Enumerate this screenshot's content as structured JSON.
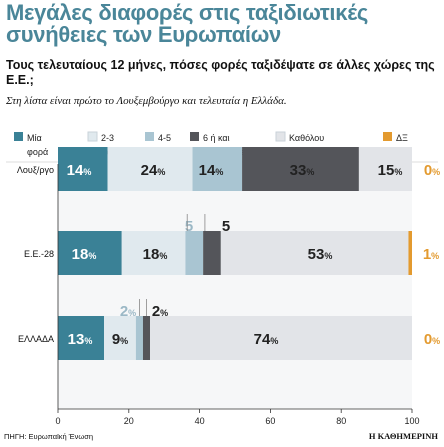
{
  "header": {
    "title": "Μεγάλες διαφορές στις ταξιδιωτικές συνήθειες των Ευρωπαίων",
    "subtitle": "Τους τελευταίους 12 μήνες, πόσες φορές ταξιδέψατε σε άλλες χώρες της Ε.Ε.;",
    "note": "Στη λίστα είναι πρώτο το Λουξεμβούργο και τελευταία η Ελλάδα."
  },
  "footer": {
    "source": "ΠΗΓΗ: Ευρωπαϊκή Ένωση",
    "brand": "Η ΚΑΘΗΜΕΡΙΝΗ"
  },
  "chart_data": {
    "type": "bar",
    "orientation": "horizontal",
    "stacked": true,
    "categories": [
      "Λουξ/ργο",
      "Ε.Ε.-28",
      "ΕΛΛΑΔΑ"
    ],
    "series": [
      {
        "name": "Μία φορά",
        "legend_lines": [
          "Μία",
          "φορά"
        ],
        "color": "#3a8196",
        "values": [
          14,
          18,
          13
        ]
      },
      {
        "name": "2-3 φορές",
        "legend_lines": [
          "2-3",
          "φορές"
        ],
        "color": "#e0e9ee",
        "values": [
          24,
          18,
          9
        ]
      },
      {
        "name": "4-5 φορές",
        "legend_lines": [
          "4-5",
          "φορές"
        ],
        "color": "#a9c5d2",
        "values": [
          14,
          5,
          2
        ]
      },
      {
        "name": "6 ή και περισσότερες",
        "legend_lines": [
          "6 ή και",
          "περισσότερες"
        ],
        "color": "#54555a",
        "values": [
          33,
          5,
          2
        ]
      },
      {
        "name": "Καθόλου",
        "legend_lines": [
          "Καθόλου"
        ],
        "color": "#e2e4e8",
        "values": [
          15,
          53,
          74
        ]
      },
      {
        "name": "ΔΞ",
        "legend_lines": [
          "ΔΞ"
        ],
        "color": "#e39a2f",
        "values": [
          0,
          1,
          0
        ]
      }
    ],
    "labels": [
      [
        "14%",
        "24%",
        "14%",
        "33%",
        "15%",
        "0%"
      ],
      [
        "18%",
        "18%",
        "5",
        "5",
        "53%",
        "1%"
      ],
      [
        "13%",
        "9%",
        "2%",
        "2%",
        "74%",
        "0%"
      ]
    ],
    "xlim": [
      0,
      100
    ],
    "xticks": [
      "0",
      "20",
      "40",
      "60",
      "80",
      "100"
    ],
    "grid": false,
    "legend_position": "top"
  }
}
